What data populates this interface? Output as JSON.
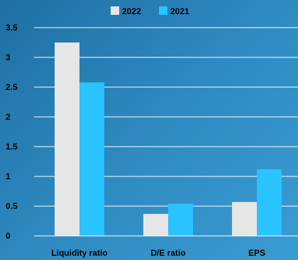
{
  "chart_data": {
    "type": "bar",
    "categories": [
      "Liquidity ratio",
      "D/E ratio",
      "EPS"
    ],
    "series": [
      {
        "name": "2022",
        "values": [
          3.25,
          0.37,
          0.57
        ],
        "color": "#e6e6e6"
      },
      {
        "name": "2021",
        "values": [
          2.58,
          0.54,
          1.12
        ],
        "color": "#29c3ff"
      }
    ],
    "ylim": [
      0,
      3.5
    ],
    "yticks": [
      0,
      0.5,
      1,
      1.5,
      2,
      2.5,
      3,
      3.5
    ],
    "ytick_labels": [
      "0",
      "0.5",
      "1",
      "1.5",
      "2",
      "2.5",
      "3",
      "3.5"
    ],
    "grid": true,
    "legend_position": "top-center",
    "title": "",
    "xlabel": "",
    "ylabel": ""
  },
  "colors": {
    "background_start": "#1f6fa3",
    "background_end": "#3a9bd2",
    "grid": "#ffffff"
  }
}
